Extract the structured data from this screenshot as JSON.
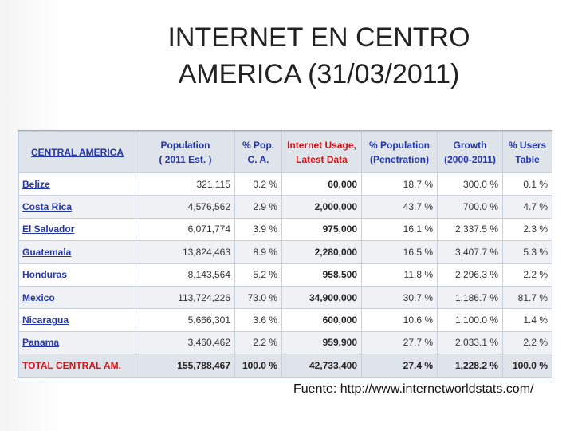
{
  "title_line1": "INTERNET EN CENTRO",
  "title_line2": "AMERICA (31/03/2011)",
  "table": {
    "headers": [
      {
        "line1": "CENTRAL AMERICA",
        "line2": ""
      },
      {
        "line1": "Population",
        "line2": "( 2011 Est. )"
      },
      {
        "line1": "% Pop.",
        "line2": "C. A."
      },
      {
        "line1": "Internet Usage,",
        "line2": "Latest Data"
      },
      {
        "line1": "% Population",
        "line2": "(Penetration)"
      },
      {
        "line1": "Growth",
        "line2": "(2000-2011)"
      },
      {
        "line1": "% Users",
        "line2": "Table"
      }
    ],
    "rows": [
      [
        "Belize",
        "321,115",
        "0.2 %",
        "60,000",
        "18.7 %",
        "300.0 %",
        "0.1 %"
      ],
      [
        "Costa Rica",
        "4,576,562",
        "2.9 %",
        "2,000,000",
        "43.7 %",
        "700.0 %",
        "4.7 %"
      ],
      [
        "El Salvador",
        "6,071,774",
        "3.9 %",
        "975,000",
        "16.1 %",
        "2,337.5 %",
        "2.3 %"
      ],
      [
        "Guatemala",
        "13,824,463",
        "8.9 %",
        "2,280,000",
        "16.5 %",
        "3,407.7 %",
        "5.3 %"
      ],
      [
        "Honduras",
        "8,143,564",
        "5.2 %",
        "958,500",
        "11.8 %",
        "2,296.3 %",
        "2.2 %"
      ],
      [
        "Mexico",
        "113,724,226",
        "73.0 %",
        "34,900,000",
        "30.7 %",
        "1,186.7 %",
        "81.7 %"
      ],
      [
        "Nicaragua",
        "5,666,301",
        "3.6 %",
        "600,000",
        "10.6 %",
        "1,100.0 %",
        "1.4 %"
      ],
      [
        "Panama",
        "3,460,462",
        "2.2 %",
        "959,900",
        "27.7 %",
        "2,033.1 %",
        "2.2 %"
      ]
    ],
    "total": [
      "TOTAL CENTRAL AM.",
      "155,788,467",
      "100.0 %",
      "42,733,400",
      "27.4 %",
      "1,228.2 %",
      "100.0 %"
    ]
  },
  "source": "Fuente: http://www.internetworldstats.com/",
  "colors": {
    "header_blue": "#2437a8",
    "header_red": "#d1141a",
    "header_bg": "#dfe3ea"
  }
}
